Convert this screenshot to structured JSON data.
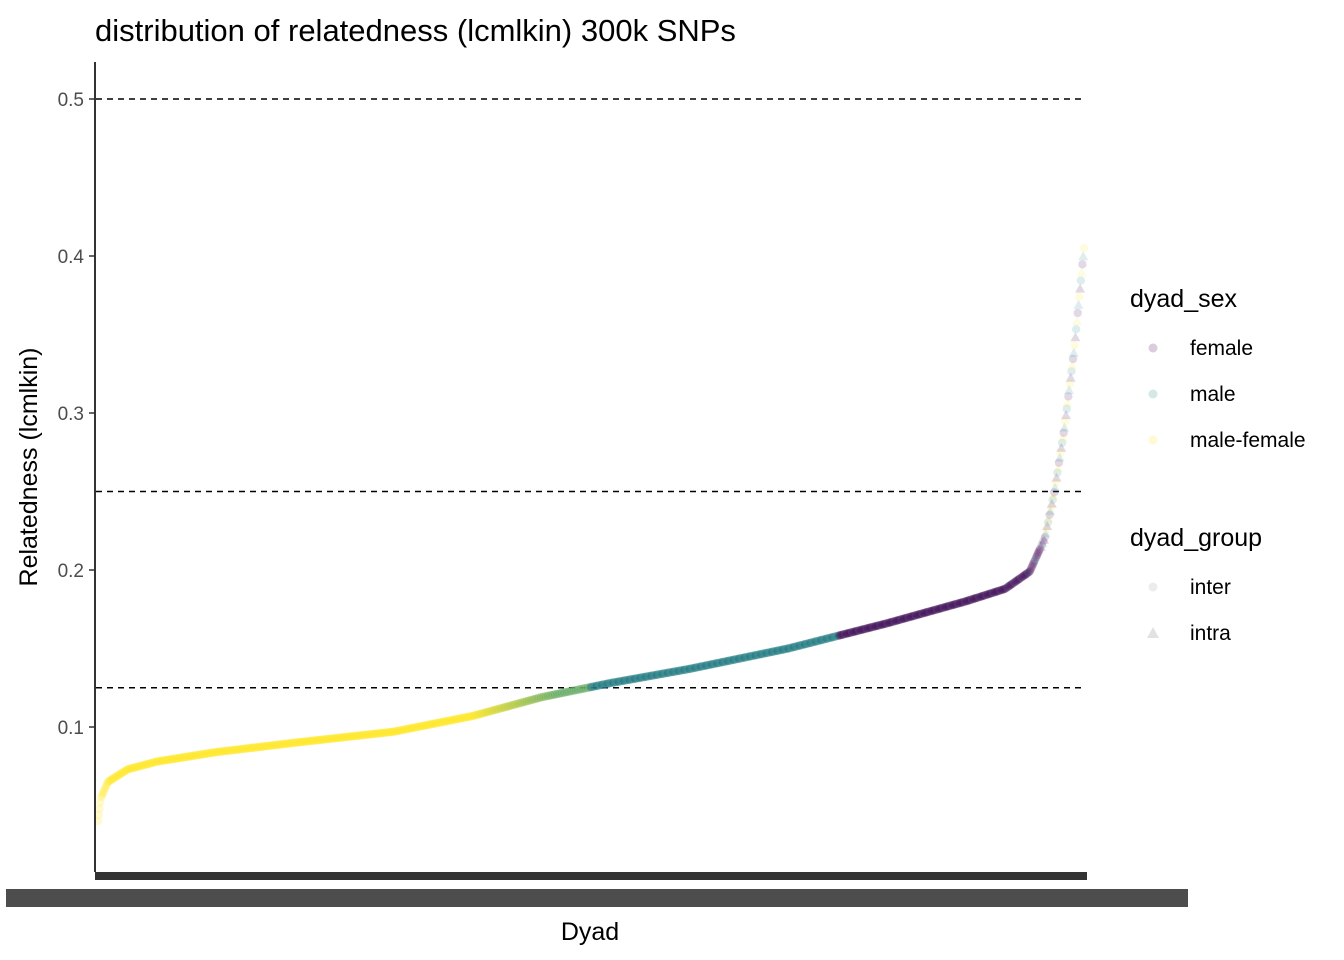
{
  "chart_data": {
    "type": "scatter",
    "title": "distribution of relatedness (lcmlkin) 300k SNPs",
    "xlabel": "Dyad",
    "ylabel": "Relatedness (lcmlkin)",
    "x_ticks": "dense overlapping dyad labels (illegible)",
    "y_ticks": [
      "0.1",
      "0.2",
      "0.3",
      "0.4",
      "0.5"
    ],
    "y_tick_values": [
      0.1,
      0.2,
      0.3,
      0.4,
      0.5
    ],
    "ylim": [
      0.0,
      0.52
    ],
    "grid": false,
    "reference_lines": [
      0.125,
      0.25,
      0.5
    ],
    "point_count": 1260,
    "curve_points": [
      {
        "rank": 0.0,
        "value": 0.04
      },
      {
        "rank": 0.003,
        "value": 0.055
      },
      {
        "rank": 0.01,
        "value": 0.065
      },
      {
        "rank": 0.03,
        "value": 0.073
      },
      {
        "rank": 0.06,
        "value": 0.078
      },
      {
        "rank": 0.12,
        "value": 0.084
      },
      {
        "rank": 0.2,
        "value": 0.09
      },
      {
        "rank": 0.3,
        "value": 0.097
      },
      {
        "rank": 0.38,
        "value": 0.107
      },
      {
        "rank": 0.45,
        "value": 0.119
      },
      {
        "rank": 0.52,
        "value": 0.128
      },
      {
        "rank": 0.6,
        "value": 0.137
      },
      {
        "rank": 0.7,
        "value": 0.15
      },
      {
        "rank": 0.8,
        "value": 0.166
      },
      {
        "rank": 0.88,
        "value": 0.18
      },
      {
        "rank": 0.92,
        "value": 0.188
      },
      {
        "rank": 0.945,
        "value": 0.199
      },
      {
        "rank": 0.96,
        "value": 0.22
      },
      {
        "rank": 0.97,
        "value": 0.25
      },
      {
        "rank": 0.98,
        "value": 0.29
      },
      {
        "rank": 0.99,
        "value": 0.34
      },
      {
        "rank": 1.0,
        "value": 0.405
      }
    ],
    "color_bands": [
      {
        "until_rank": 0.38,
        "sex": "male-female"
      },
      {
        "until_rank": 0.5,
        "sex": "male-female/male"
      },
      {
        "until_rank": 0.75,
        "sex": "male"
      },
      {
        "until_rank": 0.96,
        "sex": "female"
      },
      {
        "until_rank": 1.0,
        "sex": "mixed"
      }
    ],
    "legends": [
      {
        "title": "dyad_sex",
        "items": [
          {
            "label": "female",
            "color": "#440154",
            "shape": "circle"
          },
          {
            "label": "male",
            "color": "#21908C",
            "shape": "circle"
          },
          {
            "label": "male-female",
            "color": "#FDE725",
            "shape": "circle"
          }
        ]
      },
      {
        "title": "dyad_group",
        "items": [
          {
            "label": "inter",
            "color": "#9e9e9e",
            "shape": "circle"
          },
          {
            "label": "intra",
            "color": "#9e9e9e",
            "shape": "triangle"
          }
        ]
      }
    ],
    "legend_placement": "right"
  }
}
